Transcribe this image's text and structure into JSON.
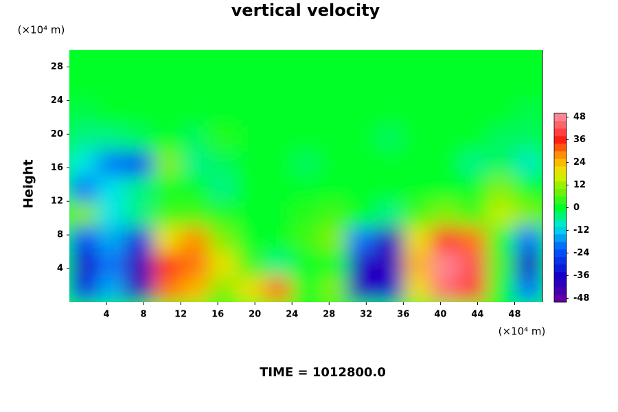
{
  "chart_data": {
    "type": "contour",
    "title": "vertical velocity",
    "y_label": "Height",
    "y_unit": "(×10⁴ m)",
    "x_unit": "(×10⁴ m)",
    "footer": "TIME = 1012800.0",
    "xlim": [
      0,
      51
    ],
    "ylim": [
      0,
      30
    ],
    "xticks": [
      4,
      8,
      12,
      16,
      20,
      24,
      28,
      32,
      36,
      40,
      44,
      48
    ],
    "yticks": [
      4,
      8,
      12,
      16,
      20,
      24,
      28
    ],
    "x": [
      1.5,
      4.5,
      7.5,
      10.5,
      13.5,
      16.5,
      19.5,
      22.5,
      25.5,
      28.5,
      31.5,
      34.5,
      37.5,
      40.5,
      43.5,
      46.5,
      49.5
    ],
    "y": [
      1.5,
      4.5,
      7.5,
      10.5,
      13.5,
      16.5,
      19.5,
      22.5,
      25.5,
      28.5
    ],
    "z": [
      [
        -30,
        -15,
        -40,
        30,
        25,
        10,
        20,
        30,
        0,
        10,
        -40,
        -35,
        20,
        45,
        40,
        0,
        -20
      ],
      [
        -36,
        -20,
        -42,
        35,
        30,
        20,
        5,
        -5,
        0,
        0,
        -38,
        -40,
        25,
        48,
        42,
        5,
        -36
      ],
      [
        -25,
        -15,
        -30,
        20,
        28,
        10,
        0,
        0,
        5,
        10,
        -20,
        -40,
        20,
        38,
        30,
        0,
        -20
      ],
      [
        10,
        -10,
        -5,
        5,
        5,
        2,
        0,
        0,
        3,
        5,
        0,
        -5,
        5,
        10,
        5,
        15,
        10
      ],
      [
        -20,
        -10,
        -5,
        0,
        0,
        -5,
        0,
        0,
        0,
        0,
        0,
        0,
        0,
        0,
        0,
        10,
        0
      ],
      [
        -10,
        -20,
        -25,
        10,
        -5,
        -3,
        0,
        0,
        -3,
        0,
        0,
        0,
        0,
        0,
        -5,
        -3,
        -8
      ],
      [
        -5,
        -5,
        -3,
        0,
        -3,
        3,
        0,
        0,
        0,
        0,
        0,
        -3,
        0,
        0,
        0,
        -3,
        -3
      ],
      [
        -2,
        0,
        0,
        0,
        0,
        0,
        0,
        0,
        0,
        0,
        0,
        0,
        0,
        0,
        0,
        0,
        -2
      ],
      [
        0,
        0,
        0,
        0,
        0,
        0,
        0,
        0,
        0,
        0,
        0,
        0,
        0,
        0,
        0,
        0,
        0
      ],
      [
        0,
        0,
        0,
        0,
        0,
        0,
        0,
        0,
        0,
        0,
        0,
        0,
        0,
        0,
        0,
        0,
        0
      ]
    ],
    "clim": [
      -50,
      50
    ],
    "cticks": [
      -48,
      -36,
      -24,
      -12,
      0,
      12,
      24,
      36,
      48
    ]
  }
}
